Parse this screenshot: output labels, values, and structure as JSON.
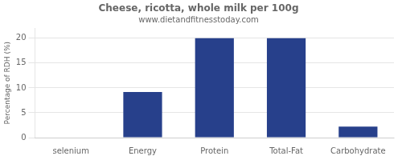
{
  "chart_data": {
    "type": "bar",
    "title": "Cheese, ricotta, whole milk per 100g",
    "subtitle": "www.dietandfitnesstoday.com",
    "categories": [
      "selenium",
      "Energy",
      "Protein",
      "Total-Fat",
      "Carbohydrate"
    ],
    "values": [
      0,
      9.2,
      20,
      20,
      2.2
    ],
    "color": "#27408B",
    "ylabel": "Percentage of RDH (%)",
    "ylim": [
      0,
      22
    ],
    "yticks": [
      0,
      5,
      10,
      15,
      20
    ],
    "grid": true
  }
}
